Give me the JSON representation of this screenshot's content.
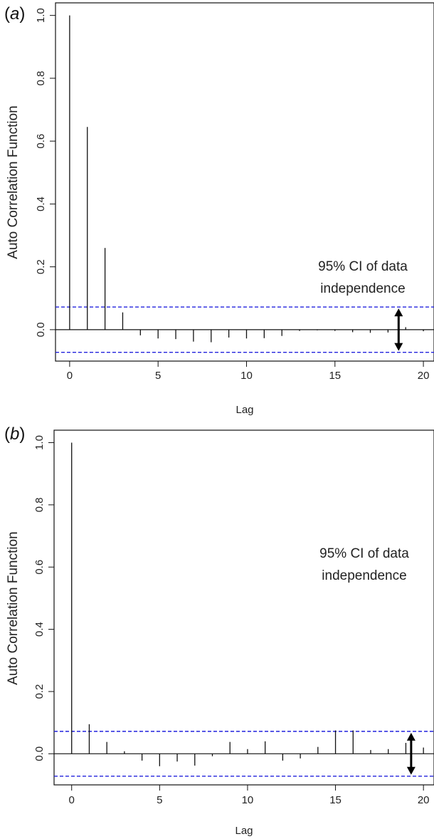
{
  "chart_data": [
    {
      "panel": "(a)",
      "type": "bar",
      "xlabel": "Lag",
      "ylabel": "Auto Correlation Function",
      "xlim": [
        -0.8,
        20.6
      ],
      "ylim": [
        -0.1,
        1.04
      ],
      "x_ticks": [
        0,
        5,
        10,
        15,
        20
      ],
      "y_ticks": [
        0.0,
        0.2,
        0.4,
        0.6,
        0.8,
        1.0
      ],
      "y_tick_labels": [
        "0.0",
        "0.2",
        "0.4",
        "0.6",
        "0.8",
        "1.0"
      ],
      "ci": [
        0.072,
        -0.072
      ],
      "annotation": [
        "95% CI of data",
        "independence"
      ],
      "x": [
        0,
        1,
        2,
        3,
        4,
        5,
        6,
        7,
        8,
        9,
        10,
        11,
        12,
        13,
        14,
        15,
        16,
        17,
        18,
        19,
        20
      ],
      "values": [
        1.0,
        0.645,
        0.26,
        0.055,
        -0.018,
        -0.028,
        -0.03,
        -0.038,
        -0.04,
        -0.025,
        -0.028,
        -0.027,
        -0.02,
        -0.004,
        -0.002,
        -0.004,
        -0.008,
        -0.01,
        -0.009,
        0.008,
        -0.005
      ],
      "grid": false,
      "colors": {
        "bars": "#111111",
        "ci": "#2222dd",
        "axes": "#111111"
      }
    },
    {
      "panel": "(b)",
      "type": "bar",
      "xlabel": "Lag",
      "ylabel": "Auto Correlation Function",
      "xlim": [
        -1.0,
        20.6
      ],
      "ylim": [
        -0.1,
        1.04
      ],
      "x_ticks": [
        0,
        5,
        10,
        15,
        20
      ],
      "y_ticks": [
        0.0,
        0.2,
        0.4,
        0.6,
        0.8,
        1.0
      ],
      "y_tick_labels": [
        "0.0",
        "0.2",
        "0.4",
        "0.6",
        "0.8",
        "1.0"
      ],
      "ci": [
        0.072,
        -0.072
      ],
      "annotation": [
        "95% CI of data",
        "independence"
      ],
      "x": [
        0,
        1,
        2,
        3,
        4,
        5,
        6,
        7,
        8,
        9,
        10,
        11,
        12,
        13,
        14,
        15,
        16,
        17,
        18,
        19,
        20
      ],
      "values": [
        1.0,
        0.095,
        0.038,
        0.008,
        -0.022,
        -0.04,
        -0.025,
        -0.038,
        -0.008,
        0.038,
        0.015,
        0.04,
        -0.022,
        -0.015,
        0.022,
        0.075,
        0.075,
        0.012,
        0.015,
        0.035,
        0.02
      ],
      "grid": false,
      "colors": {
        "bars": "#111111",
        "ci": "#2222dd",
        "axes": "#111111"
      }
    }
  ]
}
